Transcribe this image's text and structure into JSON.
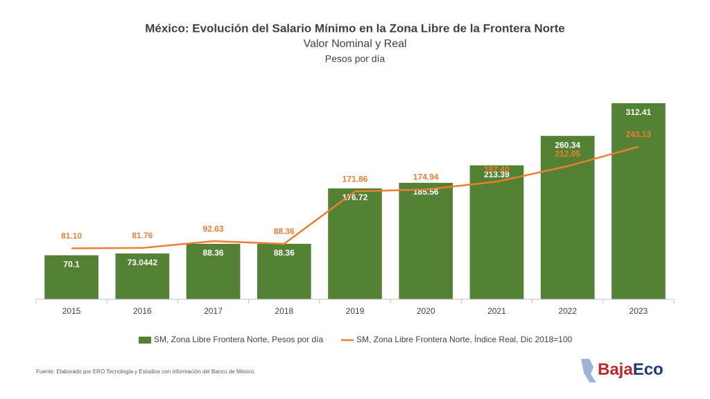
{
  "chart_data": {
    "type": "bar+line",
    "title": "México: Evolución del Salario Mínimo en la Zona Libre de la Frontera Norte",
    "subtitle": "Valor Nominal y Real",
    "unit_label": "Pesos por día",
    "categories": [
      "2015",
      "2016",
      "2017",
      "2018",
      "2019",
      "2020",
      "2021",
      "2022",
      "2023"
    ],
    "series": [
      {
        "name": "SM, Zona Libre Frontera Norte, Pesos por día",
        "type": "bar",
        "color": "#548235",
        "values": [
          70.1,
          73.0442,
          88.36,
          88.36,
          176.72,
          185.56,
          213.39,
          260.34,
          312.41
        ]
      },
      {
        "name": "SM, Zona Libre Frontera Norte, Índice Real, Dic 2018=100",
        "type": "line",
        "color": "#ed7d31",
        "values": [
          81.1,
          81.76,
          92.63,
          88.36,
          171.86,
          174.94,
          187.4,
          212.05,
          243.13
        ],
        "value_labels": [
          "81.10",
          "81.76",
          "92.63",
          "88.36",
          "171.86",
          "174.94",
          "187.40",
          "212.05",
          "243.13"
        ]
      }
    ],
    "ylim": [
      0,
      340
    ],
    "source": "Fuente: Elaborado por ERO Tecnología y Estudios con información del Banco de México.",
    "logo": [
      "Baja",
      "Eco"
    ]
  }
}
